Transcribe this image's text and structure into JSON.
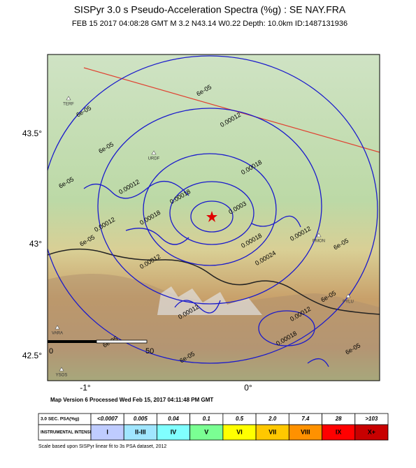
{
  "header": {
    "title": "SISPyr 3.0 s Pseudo-Acceleration Spectra (%g) : SE NAY.FRA",
    "subtitle": "FEB 15 2017 04:08:28  GMT   M 3.2    N43.14 W0.22    Depth: 10.0km    ID:1487131936"
  },
  "map": {
    "lat_labels": [
      "43.5°",
      "43°",
      "42.5°"
    ],
    "lon_labels": [
      "-1°",
      "0°"
    ],
    "scale_bar": [
      "0",
      "50"
    ],
    "stations": [
      "TERF",
      "URDF",
      "PMON",
      "PYLU",
      "VARA",
      "YSOS"
    ],
    "contour_labels": [
      "6e-05",
      "6e-05",
      "6e-05",
      "6e-05",
      "0.00012",
      "0.00012",
      "0.00018",
      "0.00018",
      "0.00012",
      "0.00018",
      "0.0003",
      "0.00012",
      "0.00018",
      "0.00024",
      "0.00012",
      "0.00012",
      "0.00012",
      "0.00018",
      "6e-05",
      "6e-05",
      "6e-05",
      "6e-05",
      "6e-05",
      "6e-05"
    ]
  },
  "footer": {
    "processed": "Map Version 6 Processed Wed Feb 15, 2017 04:11:48 PM GMT"
  },
  "legend": {
    "row_headers": [
      "3.0 SEC. PSA(%g)",
      "INSTRUMENTAL INTENSITY"
    ],
    "psa": [
      "<0.0007",
      "0.005",
      "0.04",
      "0.1",
      "0.5",
      "2.0",
      "7.4",
      "28",
      ">103"
    ],
    "intensity": [
      "I",
      "II-III",
      "IV",
      "V",
      "VI",
      "VII",
      "VIII",
      "IX",
      "X+"
    ]
  },
  "note": "Scale based upon SISPyr linear fit to 3s PSA dataset, 2012"
}
